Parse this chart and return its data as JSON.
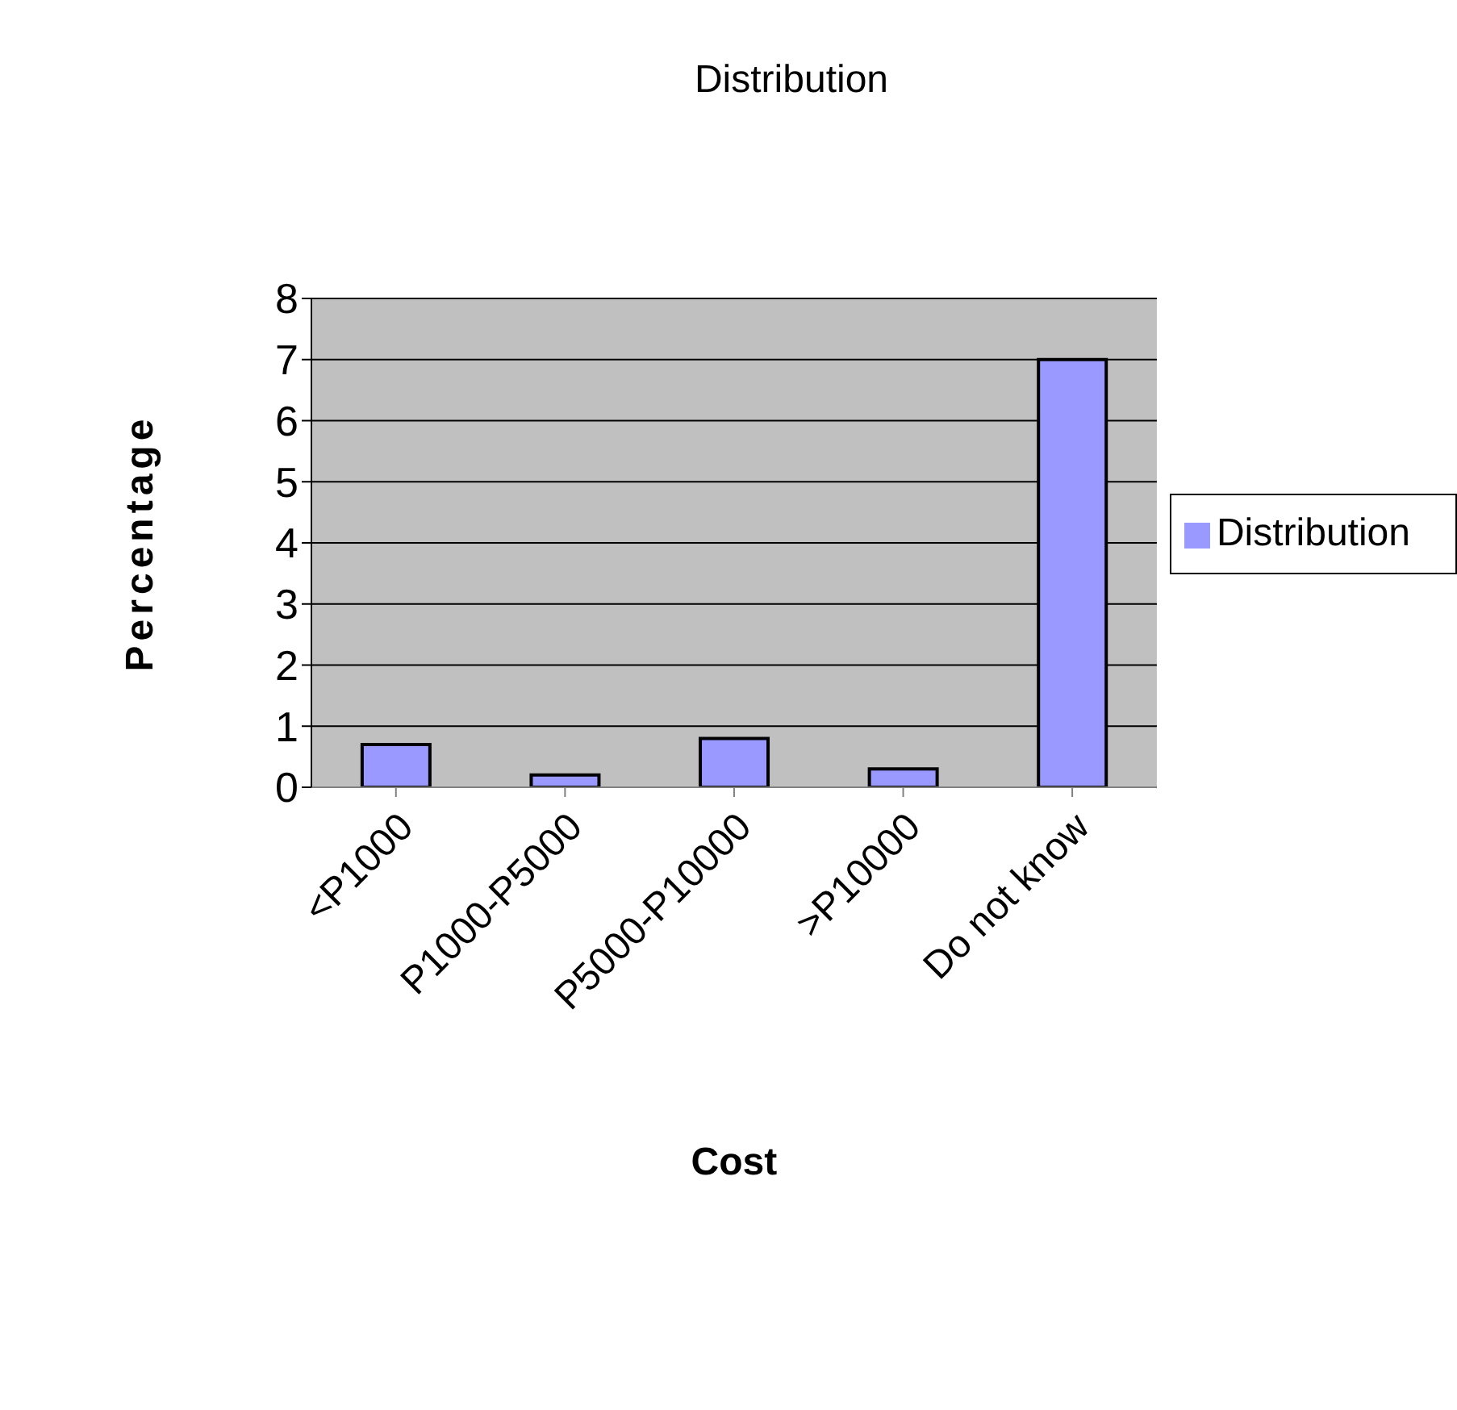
{
  "chart_data": {
    "type": "bar",
    "title": "Distribution",
    "xlabel": "Cost",
    "ylabel": "Percentage",
    "categories": [
      "<P1000",
      "P1000-P5000",
      "P5000-P10000",
      ">P10000",
      "Do not know"
    ],
    "series": [
      {
        "name": "Distribution",
        "color": "#9999ff",
        "values": [
          0.7,
          0.2,
          0.8,
          0.3,
          7
        ]
      }
    ],
    "ylim": [
      0,
      8
    ],
    "yticks": [
      0,
      1,
      2,
      3,
      4,
      5,
      6,
      7,
      8
    ],
    "grid": "y",
    "legend": "right"
  }
}
